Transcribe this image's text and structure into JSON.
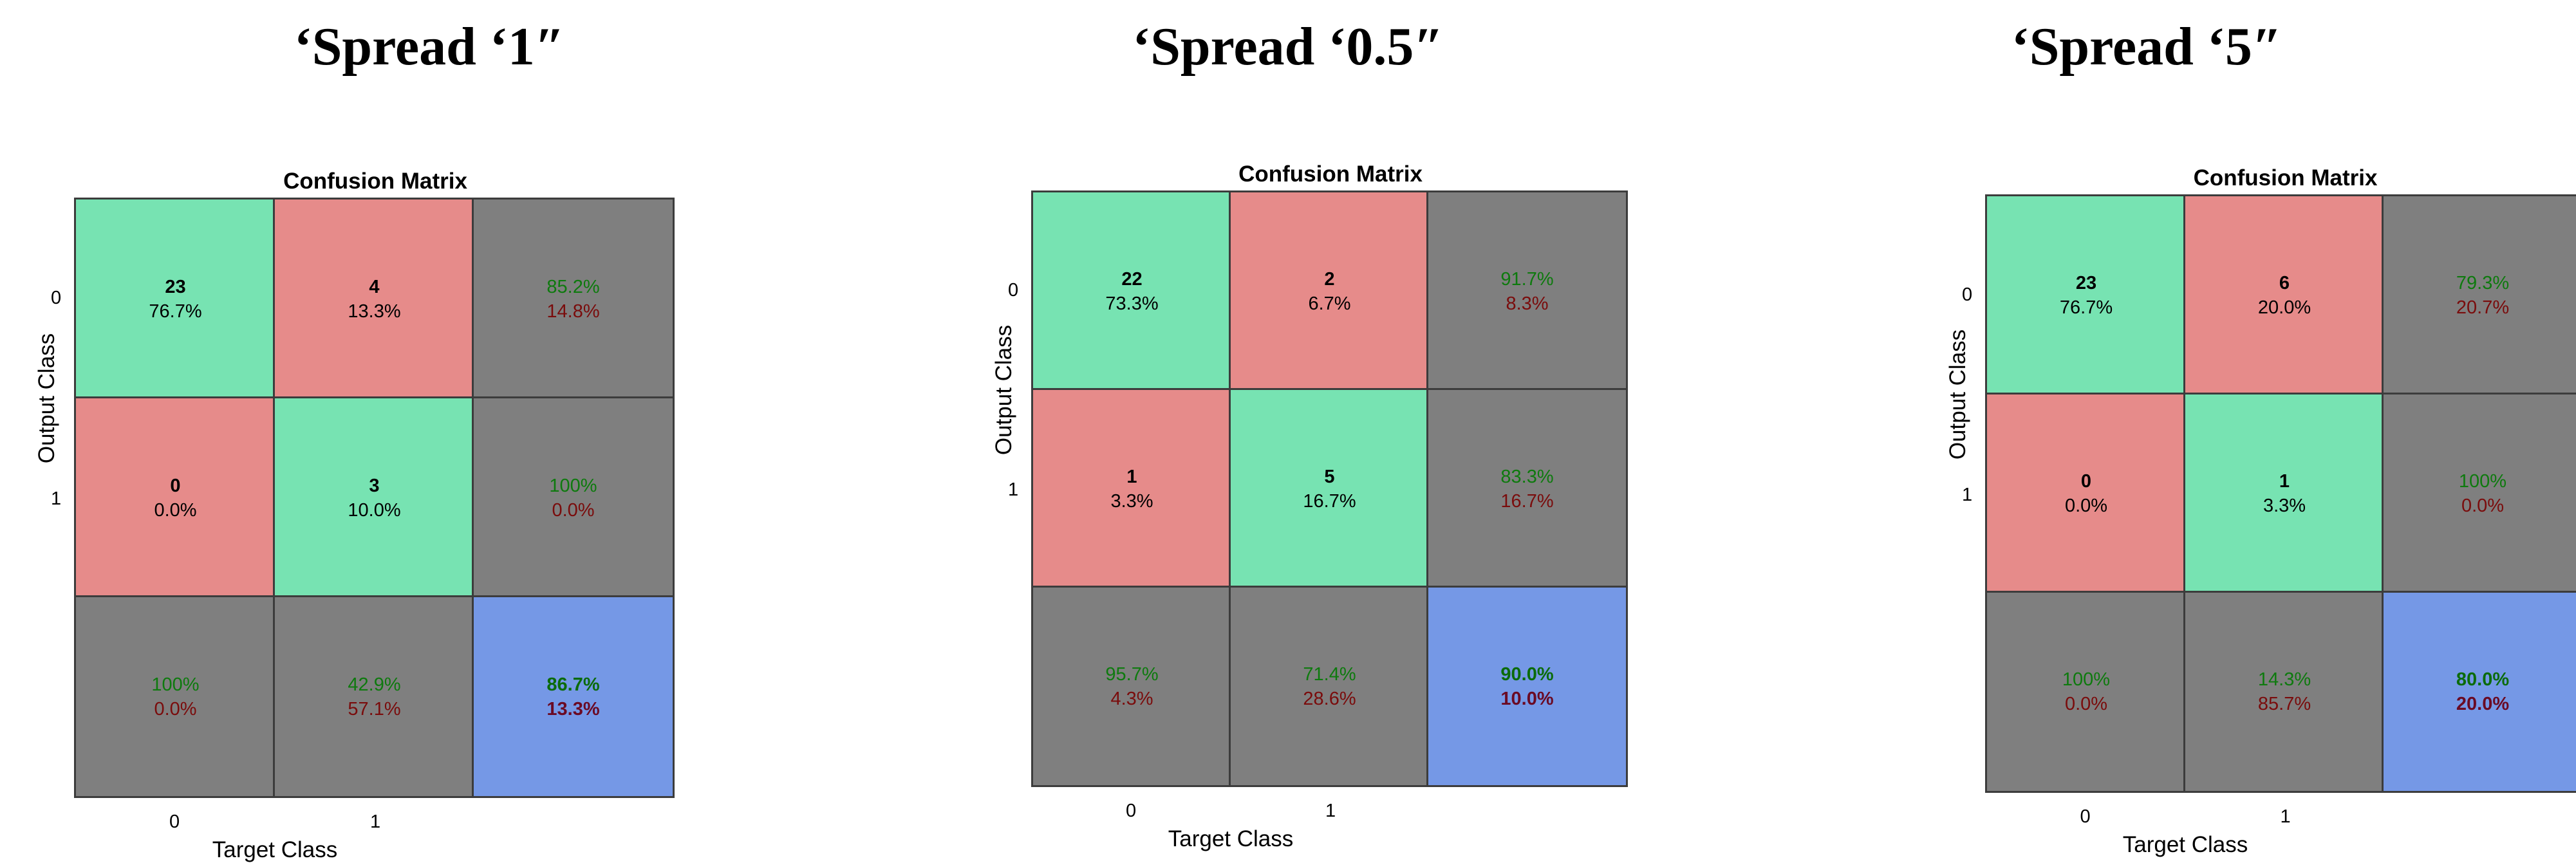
{
  "colors": {
    "correct": "#77e3b2",
    "incorrect": "#e68b8a",
    "summary": "#7f7f7f",
    "total": "#7598e6",
    "good_text": "#0e7a0e",
    "bad_text": "#7a0c0c"
  },
  "panels": [
    {
      "heading": "‘Spread ‘1″",
      "title": "Confusion Matrix",
      "xlabel": "Target Class",
      "ylabel": "Output Class",
      "class_ticks": [
        "0",
        "1"
      ]
    },
    {
      "heading": "‘Spread ‘0.5″",
      "title": "Confusion Matrix",
      "xlabel": "Target Class",
      "ylabel": "Output Class",
      "class_ticks": [
        "0",
        "1"
      ]
    },
    {
      "heading": "‘Spread ‘5″",
      "title": "Confusion Matrix",
      "xlabel": "Target Class",
      "ylabel": "Output Class",
      "class_ticks": [
        "0",
        "1"
      ]
    }
  ],
  "chart_data": [
    {
      "type": "table",
      "title": "Confusion Matrix",
      "xlabel": "Target Class",
      "ylabel": "Output Class",
      "classes": [
        "0",
        "1"
      ],
      "counts": [
        [
          23,
          4
        ],
        [
          0,
          3
        ]
      ],
      "percent_of_total": [
        [
          "76.7%",
          "13.3%"
        ],
        [
          "0.0%",
          "10.0%"
        ]
      ],
      "row_summary": [
        [
          "85.2%",
          "14.8%"
        ],
        [
          "100%",
          "0.0%"
        ]
      ],
      "column_summary": [
        [
          "100%",
          "0.0%"
        ],
        [
          "42.9%",
          "57.1%"
        ]
      ],
      "overall": [
        "86.7%",
        "13.3%"
      ]
    },
    {
      "type": "table",
      "title": "Confusion Matrix",
      "xlabel": "Target Class",
      "ylabel": "Output Class",
      "classes": [
        "0",
        "1"
      ],
      "counts": [
        [
          22,
          2
        ],
        [
          1,
          5
        ]
      ],
      "percent_of_total": [
        [
          "73.3%",
          "6.7%"
        ],
        [
          "3.3%",
          "16.7%"
        ]
      ],
      "row_summary": [
        [
          "91.7%",
          "8.3%"
        ],
        [
          "83.3%",
          "16.7%"
        ]
      ],
      "column_summary": [
        [
          "95.7%",
          "4.3%"
        ],
        [
          "71.4%",
          "28.6%"
        ]
      ],
      "overall": [
        "90.0%",
        "10.0%"
      ]
    },
    {
      "type": "table",
      "title": "Confusion Matrix",
      "xlabel": "Target Class",
      "ylabel": "Output Class",
      "classes": [
        "0",
        "1"
      ],
      "counts": [
        [
          23,
          6
        ],
        [
          0,
          1
        ]
      ],
      "percent_of_total": [
        [
          "76.7%",
          "20.0%"
        ],
        [
          "0.0%",
          "3.3%"
        ]
      ],
      "row_summary": [
        [
          "79.3%",
          "20.7%"
        ],
        [
          "100%",
          "0.0%"
        ]
      ],
      "column_summary": [
        [
          "100%",
          "0.0%"
        ],
        [
          "14.3%",
          "85.7%"
        ]
      ],
      "overall": [
        "80.0%",
        "20.0%"
      ]
    }
  ]
}
